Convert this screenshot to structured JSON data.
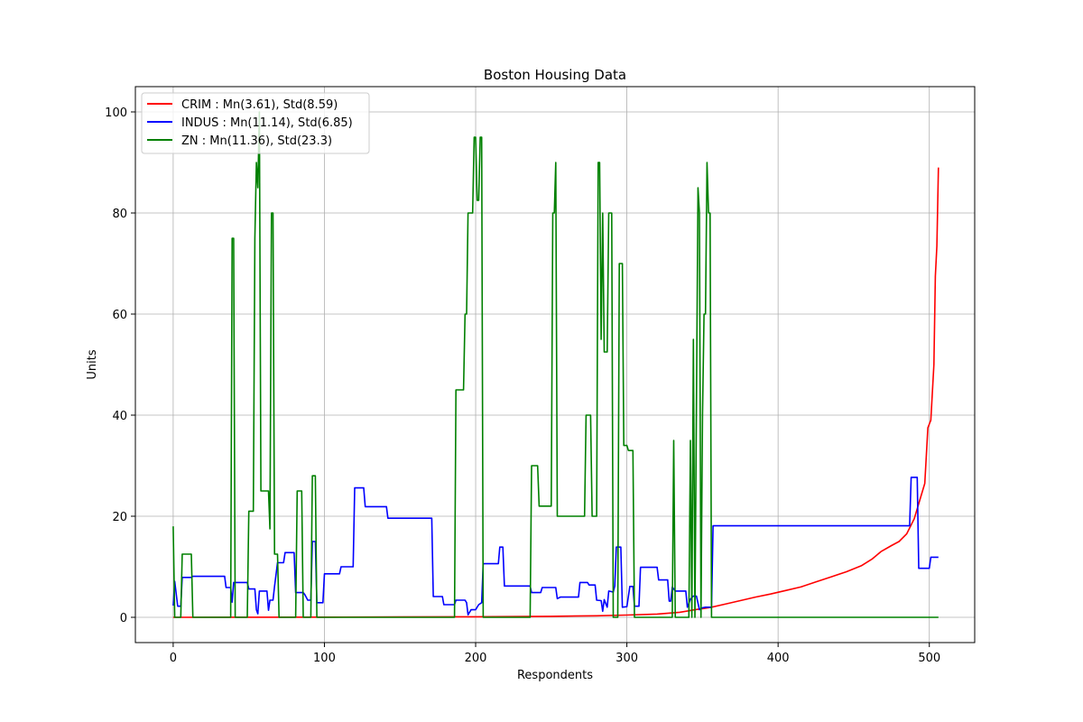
{
  "chart_data": {
    "type": "line",
    "title": "Boston Housing Data",
    "xlabel": "Respondents",
    "ylabel": "Units",
    "xlim": [
      -25,
      530
    ],
    "ylim": [
      -5,
      105
    ],
    "xticks": [
      0,
      100,
      200,
      300,
      400,
      500
    ],
    "yticks": [
      0,
      20,
      40,
      60,
      80,
      100
    ],
    "grid": true,
    "legend_position": "top-left",
    "series": [
      {
        "name": "CRIM : Mn(3.61), Std(8.59)",
        "color": "#ff0000",
        "points": [
          [
            0,
            0.0
          ],
          [
            50,
            0.02
          ],
          [
            100,
            0.04
          ],
          [
            150,
            0.07
          ],
          [
            200,
            0.1
          ],
          [
            250,
            0.2
          ],
          [
            280,
            0.3
          ],
          [
            300,
            0.45
          ],
          [
            320,
            0.65
          ],
          [
            335,
            1.0
          ],
          [
            345,
            1.5
          ],
          [
            352,
            1.8
          ],
          [
            356,
            2.0
          ],
          [
            365,
            2.6
          ],
          [
            375,
            3.3
          ],
          [
            385,
            4.0
          ],
          [
            395,
            4.6
          ],
          [
            405,
            5.3
          ],
          [
            415,
            6.0
          ],
          [
            425,
            7.0
          ],
          [
            435,
            8.0
          ],
          [
            445,
            9.0
          ],
          [
            455,
            10.2
          ],
          [
            462,
            11.5
          ],
          [
            468,
            13.0
          ],
          [
            475,
            14.2
          ],
          [
            480,
            15.0
          ],
          [
            485,
            16.5
          ],
          [
            490,
            19.5
          ],
          [
            494,
            23.5
          ],
          [
            497,
            26.5
          ],
          [
            499,
            37.5
          ],
          [
            501,
            39.0
          ],
          [
            503,
            50.0
          ],
          [
            504,
            67.5
          ],
          [
            505,
            73.5
          ],
          [
            506,
            89.0
          ]
        ]
      },
      {
        "name": "INDUS : Mn(11.14), Std(6.85)",
        "color": "#0000ff",
        "points": [
          [
            0,
            2.3
          ],
          [
            1,
            7.1
          ],
          [
            3,
            2.2
          ],
          [
            5,
            2.2
          ],
          [
            6,
            7.9
          ],
          [
            12,
            7.9
          ],
          [
            13,
            8.1
          ],
          [
            34,
            8.1
          ],
          [
            35,
            5.9
          ],
          [
            38,
            5.9
          ],
          [
            39,
            3.0
          ],
          [
            40,
            6.9
          ],
          [
            49,
            6.9
          ],
          [
            50,
            5.6
          ],
          [
            54,
            5.6
          ],
          [
            55,
            1.5
          ],
          [
            56,
            0.7
          ],
          [
            57,
            5.2
          ],
          [
            62,
            5.2
          ],
          [
            63,
            1.4
          ],
          [
            64,
            3.4
          ],
          [
            66,
            3.4
          ],
          [
            67,
            6.1
          ],
          [
            69,
            10.8
          ],
          [
            73,
            10.8
          ],
          [
            74,
            12.8
          ],
          [
            80,
            12.8
          ],
          [
            81,
            4.9
          ],
          [
            86,
            4.9
          ],
          [
            87,
            4.5
          ],
          [
            89,
            3.4
          ],
          [
            91,
            3.4
          ],
          [
            92,
            15.0
          ],
          [
            94,
            15.0
          ],
          [
            95,
            2.9
          ],
          [
            99,
            2.9
          ],
          [
            100,
            8.6
          ],
          [
            110,
            8.6
          ],
          [
            111,
            10.0
          ],
          [
            119,
            10.0
          ],
          [
            120,
            25.6
          ],
          [
            126,
            25.6
          ],
          [
            127,
            21.9
          ],
          [
            141,
            21.9
          ],
          [
            142,
            19.6
          ],
          [
            171,
            19.6
          ],
          [
            172,
            4.1
          ],
          [
            178,
            4.1
          ],
          [
            179,
            2.5
          ],
          [
            186,
            2.5
          ],
          [
            187,
            3.4
          ],
          [
            193,
            3.4
          ],
          [
            194,
            2.9
          ],
          [
            195,
            0.5
          ],
          [
            197,
            1.5
          ],
          [
            200,
            1.5
          ],
          [
            202,
            2.5
          ],
          [
            204,
            2.9
          ],
          [
            205,
            10.6
          ],
          [
            215,
            10.6
          ],
          [
            216,
            13.9
          ],
          [
            218,
            13.9
          ],
          [
            219,
            6.2
          ],
          [
            236,
            6.2
          ],
          [
            237,
            4.9
          ],
          [
            243,
            4.9
          ],
          [
            244,
            5.9
          ],
          [
            253,
            5.9
          ],
          [
            254,
            3.7
          ],
          [
            256,
            4.0
          ],
          [
            268,
            4.0
          ],
          [
            269,
            6.9
          ],
          [
            274,
            6.9
          ],
          [
            275,
            6.4
          ],
          [
            279,
            6.4
          ],
          [
            280,
            3.4
          ],
          [
            283,
            3.3
          ],
          [
            284,
            1.2
          ],
          [
            285,
            3.5
          ],
          [
            287,
            2.0
          ],
          [
            288,
            5.2
          ],
          [
            291,
            5.0
          ],
          [
            292,
            6.2
          ],
          [
            293,
            13.9
          ],
          [
            296,
            13.9
          ],
          [
            297,
            2.0
          ],
          [
            300,
            2.1
          ],
          [
            302,
            6.1
          ],
          [
            304,
            6.1
          ],
          [
            305,
            2.2
          ],
          [
            308,
            2.2
          ],
          [
            309,
            9.9
          ],
          [
            320,
            9.9
          ],
          [
            321,
            7.4
          ],
          [
            327,
            7.4
          ],
          [
            328,
            3.2
          ],
          [
            329,
            3.2
          ],
          [
            330,
            6.0
          ],
          [
            332,
            5.2
          ],
          [
            339,
            5.2
          ],
          [
            340,
            2.0
          ],
          [
            342,
            3.6
          ],
          [
            344,
            4.2
          ],
          [
            346,
            4.2
          ],
          [
            348,
            1.5
          ],
          [
            350,
            1.9
          ],
          [
            352,
            2.0
          ],
          [
            356,
            2.0
          ],
          [
            357,
            18.1
          ],
          [
            487,
            18.1
          ],
          [
            488,
            27.7
          ],
          [
            492,
            27.7
          ],
          [
            493,
            9.7
          ],
          [
            500,
            9.7
          ],
          [
            501,
            11.9
          ],
          [
            506,
            11.9
          ]
        ]
      },
      {
        "name": "ZN : Mn(11.36), Std(23.3)",
        "color": "#008000",
        "points": [
          [
            0,
            18.0
          ],
          [
            1,
            0
          ],
          [
            5,
            0
          ],
          [
            6,
            12.5
          ],
          [
            12,
            12.5
          ],
          [
            13,
            0
          ],
          [
            38,
            0
          ],
          [
            39,
            75.0
          ],
          [
            40,
            75.0
          ],
          [
            41,
            0
          ],
          [
            49,
            0
          ],
          [
            50,
            21.0
          ],
          [
            53,
            21.0
          ],
          [
            54,
            75.0
          ],
          [
            55,
            90.0
          ],
          [
            56,
            85.0
          ],
          [
            57,
            100.0
          ],
          [
            58,
            25.0
          ],
          [
            63,
            25.0
          ],
          [
            64,
            17.5
          ],
          [
            65,
            80.0
          ],
          [
            66,
            80.0
          ],
          [
            67,
            12.5
          ],
          [
            69,
            12.5
          ],
          [
            70,
            0
          ],
          [
            81,
            0
          ],
          [
            82,
            25.0
          ],
          [
            85,
            25.0
          ],
          [
            86,
            0
          ],
          [
            91,
            0
          ],
          [
            92,
            28.0
          ],
          [
            94,
            28.0
          ],
          [
            95,
            0
          ],
          [
            186,
            0
          ],
          [
            187,
            45.0
          ],
          [
            192,
            45.0
          ],
          [
            193,
            60.0
          ],
          [
            194,
            60.0
          ],
          [
            195,
            80.0
          ],
          [
            198,
            80.0
          ],
          [
            199,
            95.0
          ],
          [
            200,
            95.0
          ],
          [
            201,
            82.5
          ],
          [
            202,
            82.5
          ],
          [
            203,
            95.0
          ],
          [
            204,
            95.0
          ],
          [
            205,
            0
          ],
          [
            236,
            0
          ],
          [
            237,
            30.0
          ],
          [
            241,
            30.0
          ],
          [
            242,
            22.0
          ],
          [
            250,
            22.0
          ],
          [
            251,
            80.0
          ],
          [
            252,
            80.0
          ],
          [
            253,
            90.0
          ],
          [
            254,
            20.0
          ],
          [
            272,
            20.0
          ],
          [
            273,
            40.0
          ],
          [
            276,
            40.0
          ],
          [
            277,
            20.0
          ],
          [
            280,
            20.0
          ],
          [
            281,
            90.0
          ],
          [
            282,
            90.0
          ],
          [
            283,
            55.0
          ],
          [
            284,
            80.0
          ],
          [
            285,
            52.5
          ],
          [
            287,
            52.5
          ],
          [
            288,
            80.0
          ],
          [
            290,
            80.0
          ],
          [
            291,
            0
          ],
          [
            294,
            0
          ],
          [
            295,
            70.0
          ],
          [
            297,
            70.0
          ],
          [
            298,
            34.0
          ],
          [
            300,
            34.0
          ],
          [
            301,
            33.0
          ],
          [
            304,
            33.0
          ],
          [
            305,
            0
          ],
          [
            330,
            0
          ],
          [
            331,
            35.0
          ],
          [
            332,
            0
          ],
          [
            341,
            0
          ],
          [
            342,
            35.0
          ],
          [
            343,
            0
          ],
          [
            344,
            55.0
          ],
          [
            345,
            0
          ],
          [
            347,
            85.0
          ],
          [
            348,
            80.0
          ],
          [
            349,
            0
          ],
          [
            350,
            40.0
          ],
          [
            351,
            60.0
          ],
          [
            352,
            60.0
          ],
          [
            353,
            90.0
          ],
          [
            354,
            80.0
          ],
          [
            355,
            80.0
          ],
          [
            356,
            0
          ],
          [
            506,
            0
          ]
        ]
      }
    ]
  }
}
